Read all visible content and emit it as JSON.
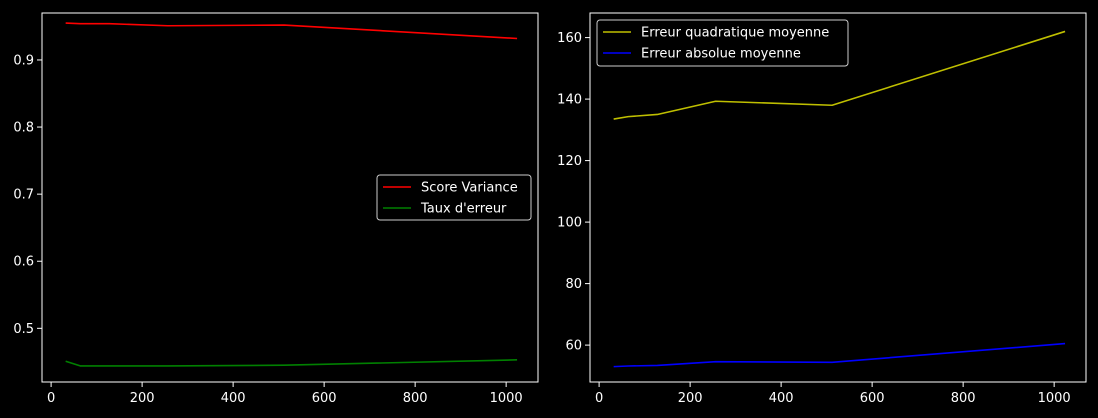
{
  "chart_data": [
    {
      "type": "line",
      "title": "",
      "xlabel": "",
      "ylabel": "",
      "xlim": [
        -20,
        1070
      ],
      "ylim": [
        0.42,
        0.97
      ],
      "xticks": [
        0,
        200,
        400,
        600,
        800,
        1000
      ],
      "yticks": [
        0.5,
        0.6,
        0.7,
        0.8,
        0.9
      ],
      "ytick_labels": [
        "0.5",
        "0.6",
        "0.7",
        "0.8",
        "0.9"
      ],
      "legend_position": "center-right",
      "series": [
        {
          "name": "Score Variance",
          "color": "#ff0000",
          "x": [
            32,
            64,
            128,
            256,
            512,
            1024
          ],
          "y": [
            0.955,
            0.954,
            0.954,
            0.951,
            0.952,
            0.932
          ]
        },
        {
          "name": "Taux d'erreur",
          "color": "#008000",
          "x": [
            32,
            64,
            128,
            256,
            512,
            1024
          ],
          "y": [
            0.451,
            0.444,
            0.444,
            0.444,
            0.445,
            0.453
          ]
        }
      ]
    },
    {
      "type": "line",
      "title": "",
      "xlabel": "",
      "ylabel": "",
      "xlim": [
        -20,
        1070
      ],
      "ylim": [
        48,
        168
      ],
      "xticks": [
        0,
        200,
        400,
        600,
        800,
        1000
      ],
      "yticks": [
        60,
        80,
        100,
        120,
        140,
        160
      ],
      "ytick_labels": [
        "60",
        "80",
        "100",
        "120",
        "140",
        "160"
      ],
      "legend_position": "top-left",
      "series": [
        {
          "name": "Erreur quadratique moyenne",
          "color": "#bfbf00",
          "x": [
            32,
            64,
            128,
            256,
            512,
            1024
          ],
          "y": [
            133.5,
            134.3,
            135.0,
            139.3,
            138.0,
            162.0
          ]
        },
        {
          "name": "Erreur absolue moyenne",
          "color": "#0000ff",
          "x": [
            32,
            64,
            128,
            256,
            512,
            1024
          ],
          "y": [
            53.0,
            53.2,
            53.4,
            54.6,
            54.4,
            60.5
          ]
        }
      ]
    }
  ]
}
